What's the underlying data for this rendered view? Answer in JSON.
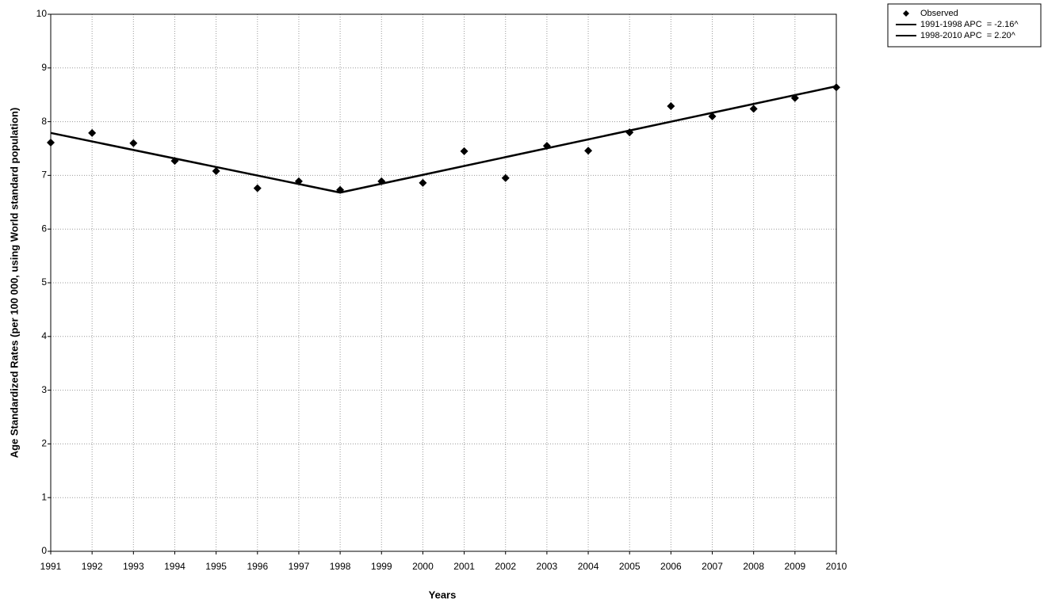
{
  "chart_data": {
    "type": "line",
    "x_label": "Years",
    "y_label": "Age Standardized Rates (per 100 000, using World standard population)",
    "xlim": [
      1991,
      2010
    ],
    "xticks": [
      1991,
      1992,
      1993,
      1994,
      1995,
      1996,
      1997,
      1998,
      1999,
      2000,
      2001,
      2002,
      2003,
      2004,
      2005,
      2006,
      2007,
      2008,
      2009,
      2010
    ],
    "ylim": [
      0,
      10
    ],
    "yticks": [
      0,
      1,
      2,
      3,
      4,
      5,
      6,
      7,
      8,
      9,
      10
    ],
    "grid": true,
    "legend": "outside-top-right",
    "series": [
      {
        "name": "Observed",
        "color": "#000000",
        "style": "markers",
        "marker": "diamond",
        "x": [
          1991,
          1992,
          1993,
          1994,
          1995,
          1996,
          1997,
          1998,
          1999,
          2000,
          2001,
          2002,
          2003,
          2004,
          2005,
          2006,
          2007,
          2008,
          2009,
          2010
        ],
        "values": [
          7.61,
          7.79,
          7.6,
          7.27,
          7.08,
          6.76,
          6.89,
          6.73,
          6.89,
          6.86,
          7.45,
          6.95,
          7.55,
          7.46,
          7.8,
          8.29,
          8.1,
          8.24,
          8.44,
          8.64
        ]
      },
      {
        "name": "1991-1998 APC  = -2.16^",
        "color": "#000000",
        "style": "line",
        "x": [
          1991,
          1998
        ],
        "values": [
          7.79,
          6.68
        ]
      },
      {
        "name": "1998-2010 APC  = 2.20^",
        "color": "#000000",
        "style": "line",
        "x": [
          1998,
          2010
        ],
        "values": [
          6.68,
          8.66
        ]
      }
    ]
  }
}
